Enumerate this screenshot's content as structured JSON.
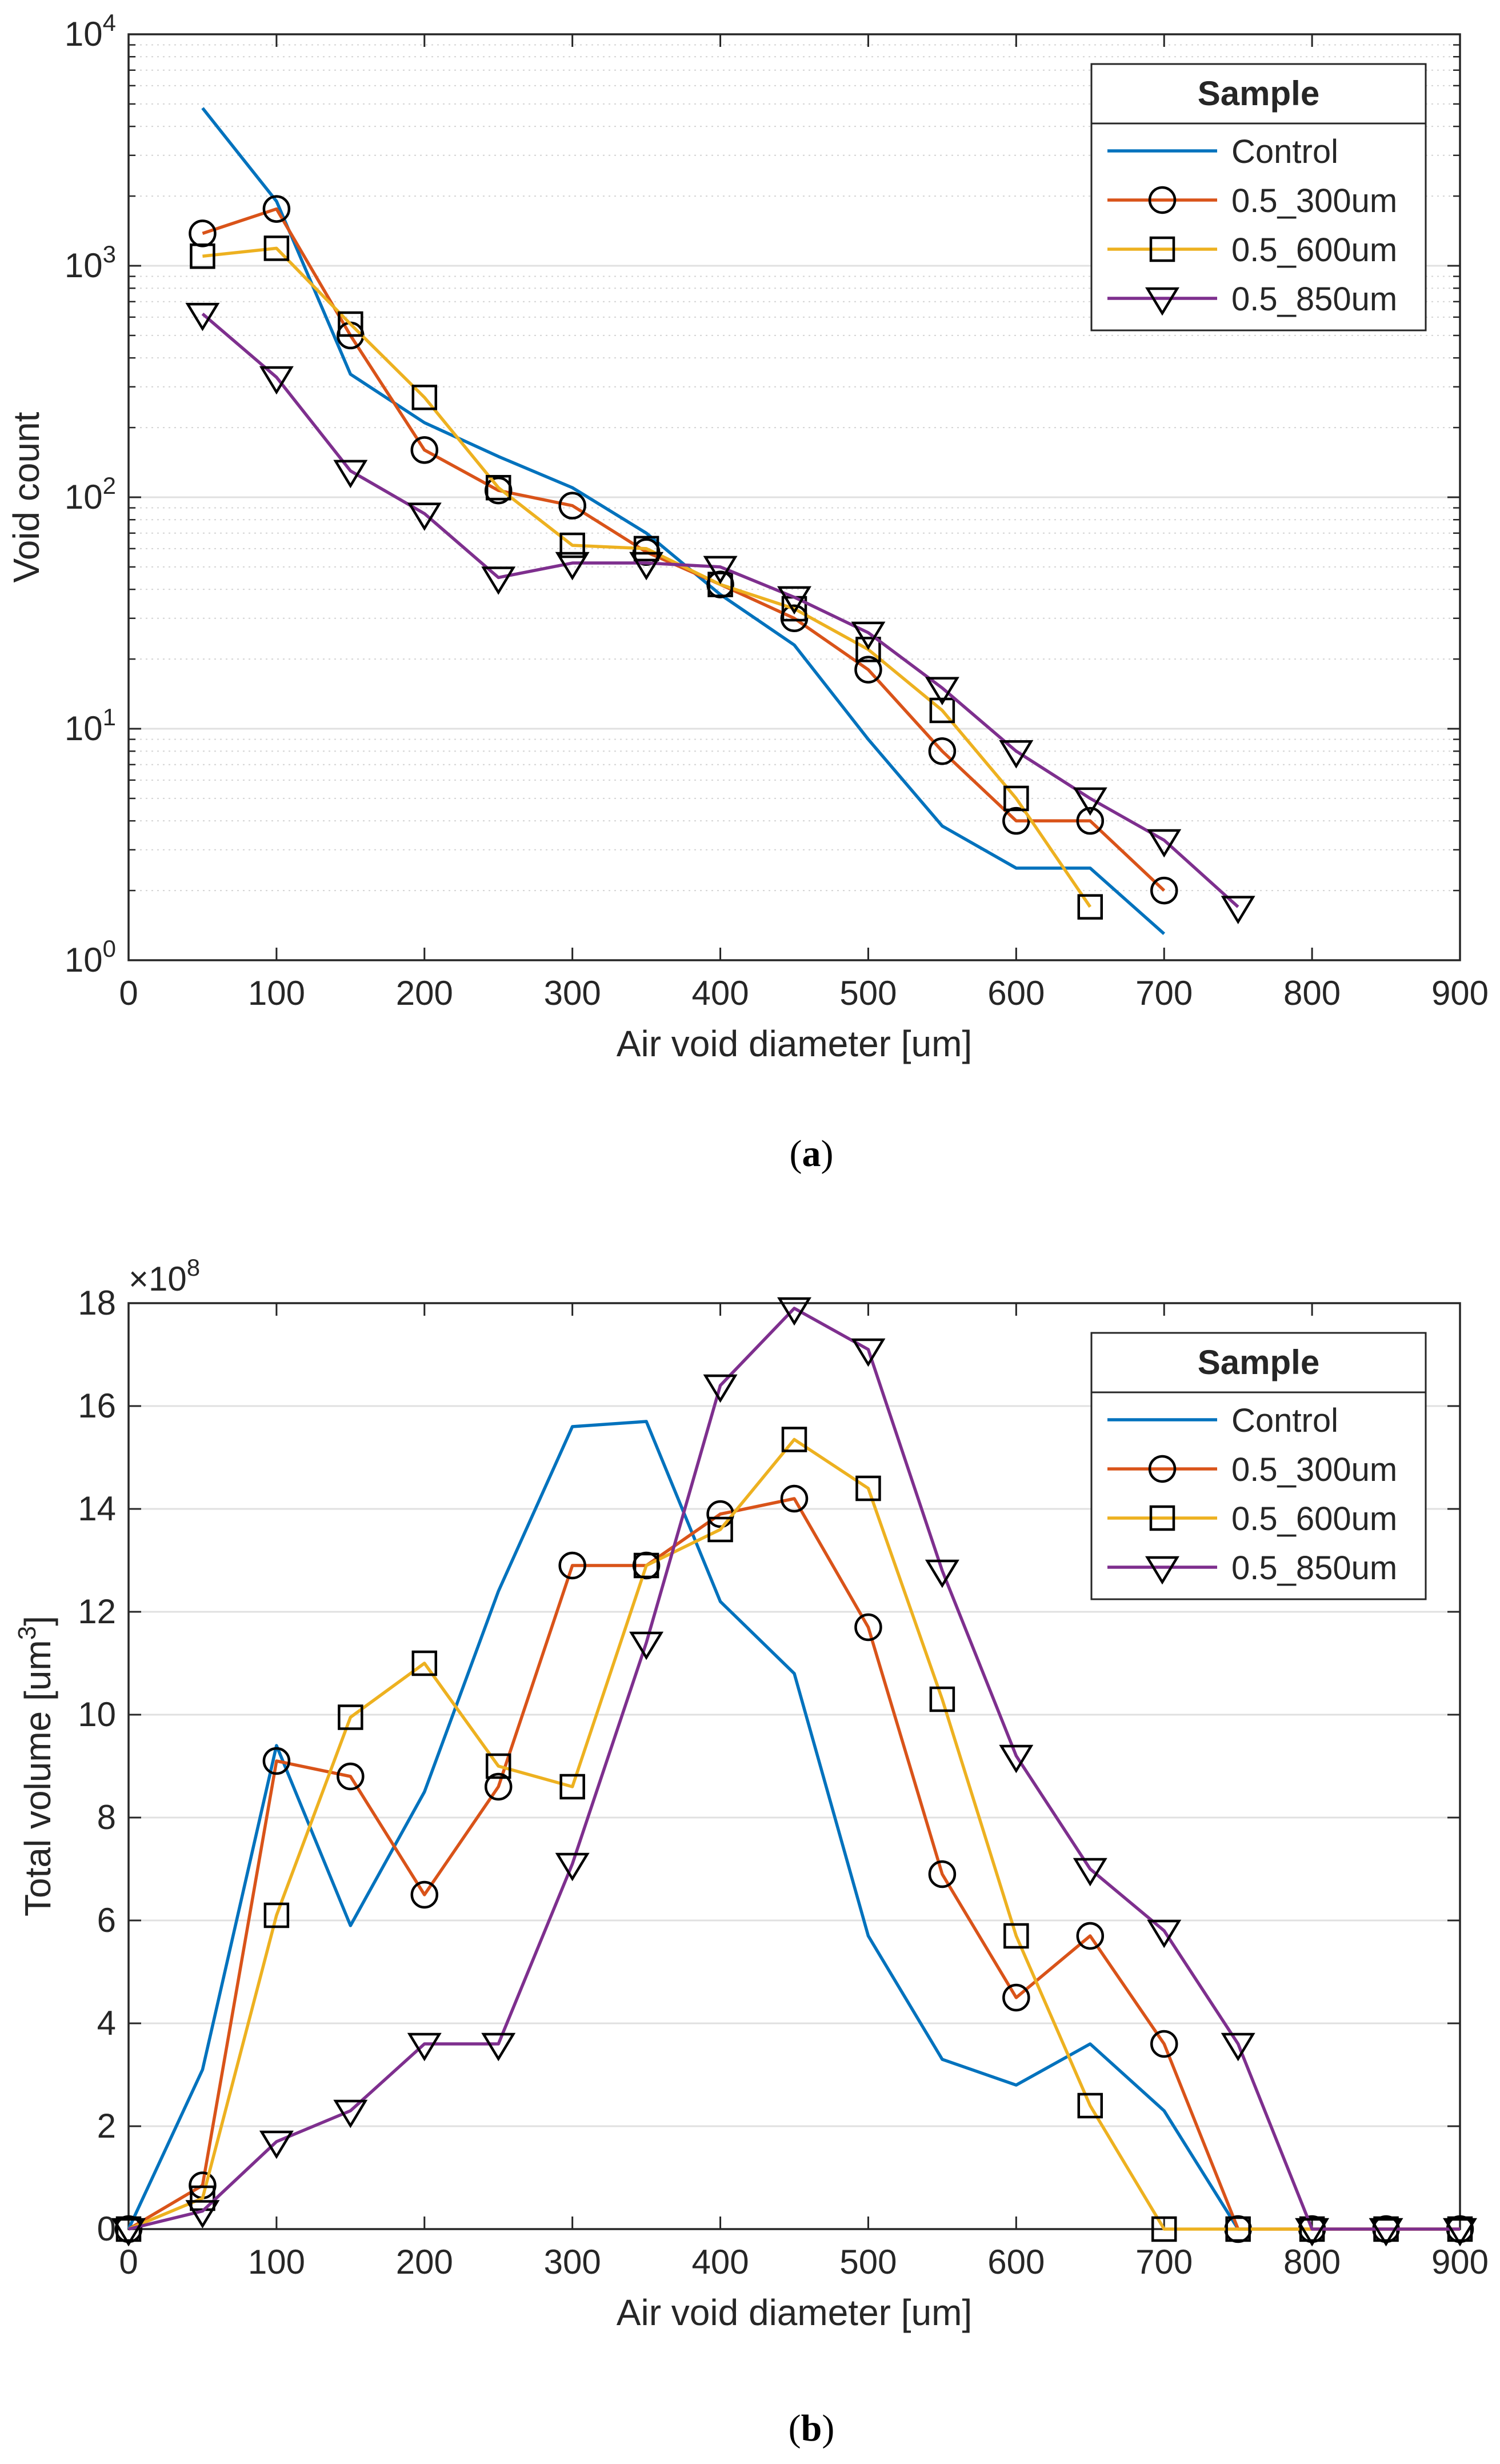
{
  "chart_data": [
    {
      "type": "line",
      "panel_label": "a",
      "xlabel": "Air void diameter [um]",
      "ylabel": "Void count",
      "xlim": [
        0,
        900
      ],
      "ylim": [
        1,
        10000
      ],
      "y_scale": "log",
      "xticks": [
        0,
        100,
        200,
        300,
        400,
        500,
        600,
        700,
        800,
        900
      ],
      "yticks": [
        {
          "base": "10",
          "exp": "0",
          "value": 1
        },
        {
          "base": "10",
          "exp": "1",
          "value": 10
        },
        {
          "base": "10",
          "exp": "2",
          "value": 100
        },
        {
          "base": "10",
          "exp": "3",
          "value": 1000
        },
        {
          "base": "10",
          "exp": "4",
          "value": 10000
        }
      ],
      "grid": true,
      "legend": {
        "title": "Sample",
        "placement": "top-right"
      },
      "series": [
        {
          "name": "Control",
          "color": "#0072BD",
          "marker": "none",
          "x": [
            50,
            100,
            150,
            200,
            250,
            300,
            350,
            400,
            450,
            500,
            550,
            600,
            650,
            700
          ],
          "y": [
            4800,
            1900,
            340,
            210,
            150,
            110,
            70,
            38,
            23,
            9,
            3.8,
            2.5,
            2.5,
            1.3
          ]
        },
        {
          "name": "0.5_300um",
          "color": "#D95319",
          "marker": "circle",
          "x": [
            50,
            100,
            150,
            200,
            250,
            300,
            350,
            400,
            450,
            500,
            550,
            600,
            650,
            700
          ],
          "y": [
            1380,
            1760,
            500,
            160,
            107,
            92,
            58,
            42,
            30,
            18,
            8,
            4,
            4,
            2
          ]
        },
        {
          "name": "0.5_600um",
          "color": "#EDB120",
          "marker": "square",
          "x": [
            50,
            100,
            150,
            200,
            250,
            300,
            350,
            400,
            450,
            500,
            550,
            600,
            650
          ],
          "y": [
            1100,
            1190,
            560,
            270,
            110,
            62,
            60,
            42,
            33,
            22,
            12,
            5,
            1.7
          ]
        },
        {
          "name": "0.5_850um",
          "color": "#7E2F8E",
          "marker": "triangle-down",
          "x": [
            50,
            100,
            150,
            200,
            250,
            300,
            350,
            400,
            450,
            500,
            550,
            600,
            650,
            700,
            750
          ],
          "y": [
            620,
            330,
            130,
            85,
            45,
            52,
            52,
            50,
            37,
            26,
            15,
            8,
            5,
            3.3,
            1.7
          ]
        }
      ]
    },
    {
      "type": "line",
      "panel_label": "b",
      "xlabel": "Air void diameter [um]",
      "ylabel": "Total volume [um",
      "ylabel_sup": "3",
      "ylabel_end": "]",
      "multiplier": {
        "base": "×10",
        "exp": "8"
      },
      "xlim": [
        0,
        900
      ],
      "ylim": [
        0,
        18
      ],
      "xticks": [
        0,
        100,
        200,
        300,
        400,
        500,
        600,
        700,
        800,
        900
      ],
      "yticks": [
        0,
        2,
        4,
        6,
        8,
        10,
        12,
        14,
        16,
        18
      ],
      "grid": true,
      "legend": {
        "title": "Sample",
        "placement": "top-right"
      },
      "series": [
        {
          "name": "Control",
          "color": "#0072BD",
          "marker": "none",
          "x": [
            0,
            50,
            100,
            150,
            200,
            250,
            300,
            350,
            400,
            450,
            500,
            550,
            600,
            650,
            700,
            750
          ],
          "y": [
            0,
            3.1,
            9.4,
            5.9,
            8.5,
            12.4,
            15.6,
            15.7,
            12.2,
            10.8,
            5.7,
            3.3,
            2.8,
            3.6,
            2.3,
            0
          ]
        },
        {
          "name": "0.5_300um",
          "color": "#D95319",
          "marker": "circle",
          "x": [
            0,
            50,
            100,
            150,
            200,
            250,
            300,
            350,
            400,
            450,
            500,
            550,
            600,
            650,
            700,
            750,
            800,
            850,
            900
          ],
          "y": [
            0,
            0.85,
            9.1,
            8.8,
            6.5,
            8.6,
            12.9,
            12.9,
            13.9,
            14.2,
            11.7,
            6.9,
            4.5,
            5.7,
            3.6,
            0,
            0,
            0,
            0
          ]
        },
        {
          "name": "0.5_600um",
          "color": "#EDB120",
          "marker": "square",
          "x": [
            0,
            50,
            100,
            150,
            200,
            250,
            300,
            350,
            400,
            450,
            500,
            550,
            600,
            650,
            700,
            750,
            800,
            850,
            900
          ],
          "y": [
            0,
            0.6,
            6.1,
            9.95,
            11.0,
            9.0,
            8.6,
            12.9,
            13.6,
            15.35,
            14.4,
            10.3,
            5.7,
            2.4,
            0,
            0,
            0,
            0,
            0
          ]
        },
        {
          "name": "0.5_850um",
          "color": "#7E2F8E",
          "marker": "triangle-down",
          "x": [
            0,
            50,
            100,
            150,
            200,
            250,
            300,
            350,
            400,
            450,
            500,
            550,
            600,
            650,
            700,
            750,
            800,
            850,
            900
          ],
          "y": [
            0,
            0.35,
            1.7,
            2.3,
            3.6,
            3.6,
            7.1,
            11.4,
            16.4,
            17.9,
            17.1,
            12.8,
            9.2,
            7.0,
            5.8,
            3.6,
            0,
            0,
            0
          ]
        }
      ]
    }
  ]
}
